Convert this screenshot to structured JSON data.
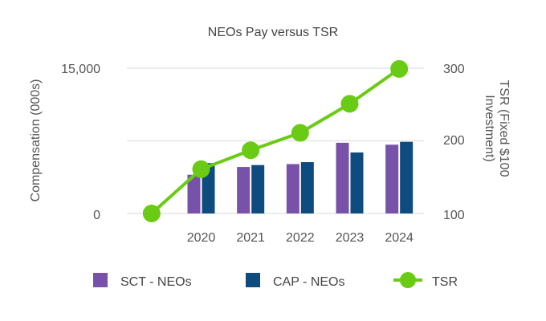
{
  "chart_data": {
    "type": "bar",
    "title": "NEOs Pay versus TSR",
    "categories": [
      "2020",
      "2021",
      "2022",
      "2023",
      "2024"
    ],
    "series": [
      {
        "name": "SCT - NEOs",
        "type": "bar",
        "axis": "left",
        "color": "#7752A8",
        "values": [
          4000,
          4800,
          5100,
          7300,
          7100
        ]
      },
      {
        "name": "CAP - NEOs",
        "type": "bar",
        "axis": "left",
        "color": "#0E4C7F",
        "values": [
          5200,
          5000,
          5300,
          6300,
          7400
        ]
      },
      {
        "name": "TSR",
        "type": "line",
        "axis": "right",
        "color": "#6ACB14",
        "x": [
          "",
          "2020",
          "2021",
          "2022",
          "2023",
          "2024"
        ],
        "values": [
          100,
          161,
          187,
          211,
          251,
          299
        ]
      }
    ],
    "ylabel": "Compensation (000s)",
    "ylim": [
      0,
      15000
    ],
    "yticks": [
      "0",
      "15,000"
    ],
    "y2label_line1": "TSR (Fixed $100",
    "y2label_line2": "Investment)",
    "y2lim": [
      100,
      300
    ],
    "y2ticks": [
      "100",
      "200",
      "300"
    ],
    "grid": true,
    "legend": "bottom"
  }
}
